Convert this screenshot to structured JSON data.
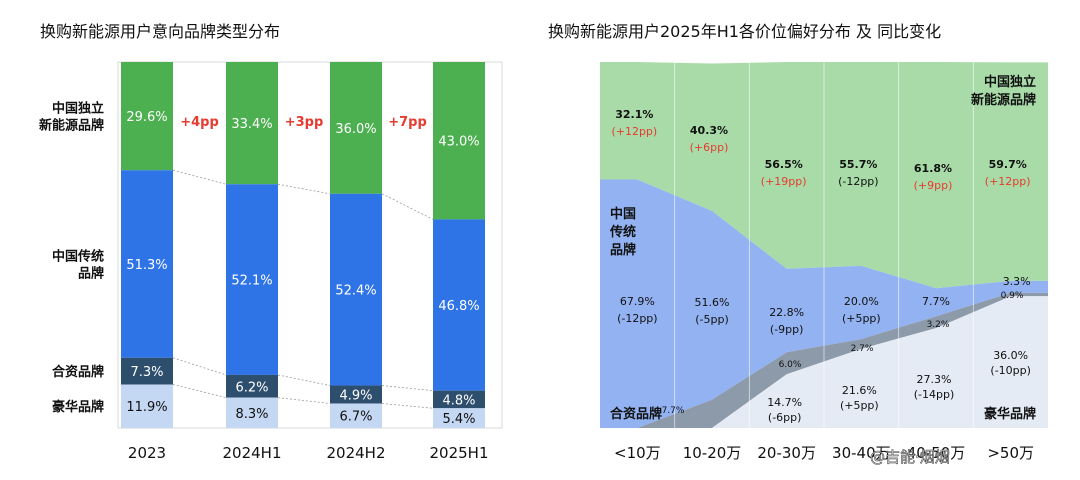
{
  "chart_data": [
    {
      "type": "bar",
      "stacked": true,
      "title": "换购新能源用户意向品牌类型分布",
      "categories": [
        "2023",
        "2024H1",
        "2024H2",
        "2025H1"
      ],
      "series": [
        {
          "name": "中国独立新能源品牌",
          "values": [
            29.6,
            33.4,
            36.0,
            43.0
          ],
          "labels": [
            "29.6%",
            "33.4%",
            "36.0%",
            "43.0%"
          ],
          "color": "#4caf50"
        },
        {
          "name": "中国传统品牌",
          "values": [
            51.3,
            52.1,
            52.4,
            46.8
          ],
          "labels": [
            "51.3%",
            "52.1%",
            "52.4%",
            "46.8%"
          ],
          "color": "#2f74e6"
        },
        {
          "name": "合资品牌",
          "values": [
            7.3,
            6.2,
            4.9,
            4.8
          ],
          "labels": [
            "7.3%",
            "6.2%",
            "4.9%",
            "4.8%"
          ],
          "color": "#2e4e6e"
        },
        {
          "name": "豪华品牌",
          "values": [
            11.9,
            8.3,
            6.7,
            5.4
          ],
          "labels": [
            "11.9%",
            "8.3%",
            "6.7%",
            "5.4%"
          ],
          "color": "#c4d7f3"
        }
      ],
      "row_labels": [
        {
          "series": 0,
          "lines": [
            "中国独立",
            "新能源品牌"
          ]
        },
        {
          "series": 1,
          "lines": [
            "中国传统",
            "品牌"
          ]
        },
        {
          "series": 2,
          "lines": [
            "合资品牌"
          ]
        },
        {
          "series": 3,
          "lines": [
            "豪华品牌"
          ]
        }
      ],
      "annotations": [
        "+4pp",
        "+3pp",
        "+7pp"
      ]
    },
    {
      "type": "area",
      "stacked": true,
      "title": "换购新能源用户2025年H1各价位偏好分布 及 同比变化",
      "categories": [
        "<10万",
        "10-20万",
        "20-30万",
        "30-40万",
        "40-50万",
        ">50万"
      ],
      "series": [
        {
          "name": "豪华品牌",
          "values": [
            0,
            0,
            14.7,
            21.6,
            27.3,
            36.0
          ],
          "labels": [
            "",
            "",
            "14.7%",
            "21.6%",
            "27.3%",
            "36.0%"
          ],
          "changes": [
            "",
            "",
            "(-6pp)",
            "(+5pp)",
            "(-14pp)",
            "(-10pp)"
          ],
          "color": "#e4ebf5"
        },
        {
          "name": "合资品牌",
          "values": [
            0,
            7.7,
            6.0,
            2.7,
            3.2,
            0.9
          ],
          "labels": [
            "",
            "7.7%",
            "6.0%",
            "2.7%",
            "3.2%",
            "0.9%"
          ],
          "color": "#8d9aaa"
        },
        {
          "name": "中国传统品牌",
          "values": [
            67.9,
            51.6,
            22.8,
            20.0,
            7.7,
            3.3
          ],
          "labels": [
            "67.9%",
            "51.6%",
            "22.8%",
            "20.0%",
            "7.7%",
            "3.3%"
          ],
          "changes": [
            "(-12pp)",
            "(-5pp)",
            "(-9pp)",
            "(+5pp)",
            "",
            ""
          ],
          "color": "#93b2f2"
        },
        {
          "name": "中国独立新能源品牌",
          "values": [
            32.1,
            40.3,
            56.5,
            55.7,
            61.8,
            59.7
          ],
          "labels": [
            "32.1%",
            "40.3%",
            "56.5%",
            "55.7%",
            "61.8%",
            "59.7%"
          ],
          "changes": [
            "(+12pp)",
            "(+6pp)",
            "(+19pp)",
            "(-12pp)",
            "(+9pp)",
            "(+12pp)"
          ],
          "color": "#a8dba8"
        }
      ],
      "area_labels": {
        "independent": [
          "中国独立",
          "新能源品牌"
        ],
        "traditional": [
          "中国",
          "传统",
          "品牌"
        ],
        "jv": "合资品牌",
        "luxury": "豪华品牌"
      },
      "ylim": [
        0,
        100
      ]
    }
  ],
  "watermark": "@吉能·烟烟"
}
